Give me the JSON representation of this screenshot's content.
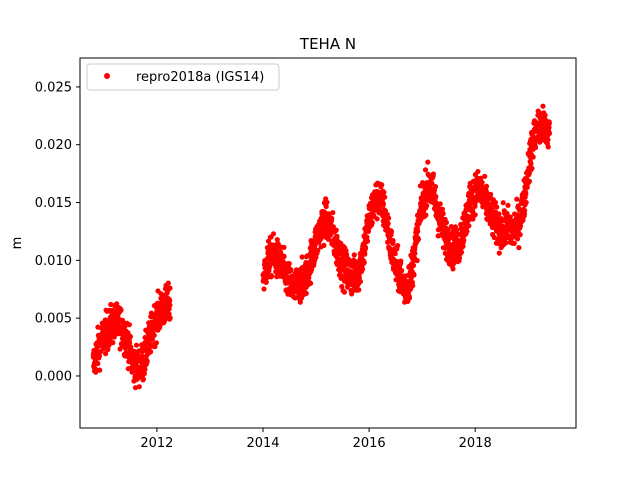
{
  "chart_data": {
    "type": "scatter",
    "title": "TEHA N",
    "xlabel": "",
    "ylabel": "m",
    "xlim": [
      2010.55,
      2019.9
    ],
    "ylim": [
      -0.0045,
      0.0275
    ],
    "x_ticks": [
      2012,
      2014,
      2016,
      2018
    ],
    "x_tick_labels": [
      "2012",
      "2014",
      "2016",
      "2018"
    ],
    "y_ticks": [
      0.0,
      0.005,
      0.01,
      0.015,
      0.02,
      0.025
    ],
    "y_tick_labels": [
      "0.000",
      "0.005",
      "0.010",
      "0.015",
      "0.020",
      "0.025"
    ],
    "legend_position": "top-left",
    "grid": false,
    "series": [
      {
        "name": "repro2018a (IGS14)",
        "color": "#ff0000",
        "marker": "circle",
        "trend_x": [
          2010.8,
          2010.9,
          2011.0,
          2011.15,
          2011.3,
          2011.45,
          2011.55,
          2011.65,
          2011.75,
          2011.85,
          2011.95,
          2012.05,
          2012.15,
          2012.25
        ],
        "trend_y": [
          0.001,
          0.0025,
          0.0035,
          0.0045,
          0.0045,
          0.003,
          0.001,
          0.0008,
          0.0012,
          0.003,
          0.0045,
          0.0055,
          0.006,
          0.0062
        ],
        "segments": [
          {
            "x": [
              2014.0,
              2014.1,
              2014.2,
              2014.35,
              2014.5,
              2014.6,
              2014.7,
              2014.8,
              2014.9,
              2015.0,
              2015.1,
              2015.2,
              2015.3,
              2015.4,
              2015.5,
              2015.6,
              2015.7,
              2015.8,
              2015.9,
              2016.0,
              2016.1,
              2016.2,
              2016.3,
              2016.4,
              2016.5,
              2016.6,
              2016.7,
              2016.8,
              2016.9,
              2017.0,
              2017.1,
              2017.2,
              2017.3,
              2017.4,
              2017.5,
              2017.6,
              2017.7,
              2017.8,
              2017.9,
              2018.0,
              2018.1,
              2018.2,
              2018.3,
              2018.4,
              2018.5,
              2018.6,
              2018.7,
              2018.8,
              2018.9,
              2019.0,
              2019.1,
              2019.2,
              2019.3,
              2019.4
            ],
            "y": [
              0.0085,
              0.01,
              0.0105,
              0.0095,
              0.008,
              0.0075,
              0.008,
              0.0085,
              0.01,
              0.0115,
              0.013,
              0.0135,
              0.0125,
              0.011,
              0.0095,
              0.009,
              0.0085,
              0.009,
              0.011,
              0.0135,
              0.015,
              0.0155,
              0.014,
              0.0115,
              0.0095,
              0.0085,
              0.0075,
              0.009,
              0.012,
              0.015,
              0.0165,
              0.016,
              0.014,
              0.0125,
              0.0115,
              0.011,
              0.0115,
              0.013,
              0.015,
              0.016,
              0.016,
              0.015,
              0.014,
              0.013,
              0.0125,
              0.013,
              0.0125,
              0.013,
              0.0145,
              0.018,
              0.0205,
              0.0215,
              0.0215,
              0.021
            ]
          }
        ],
        "noise_m": 0.0012,
        "samples_per_year": 330
      }
    ]
  }
}
